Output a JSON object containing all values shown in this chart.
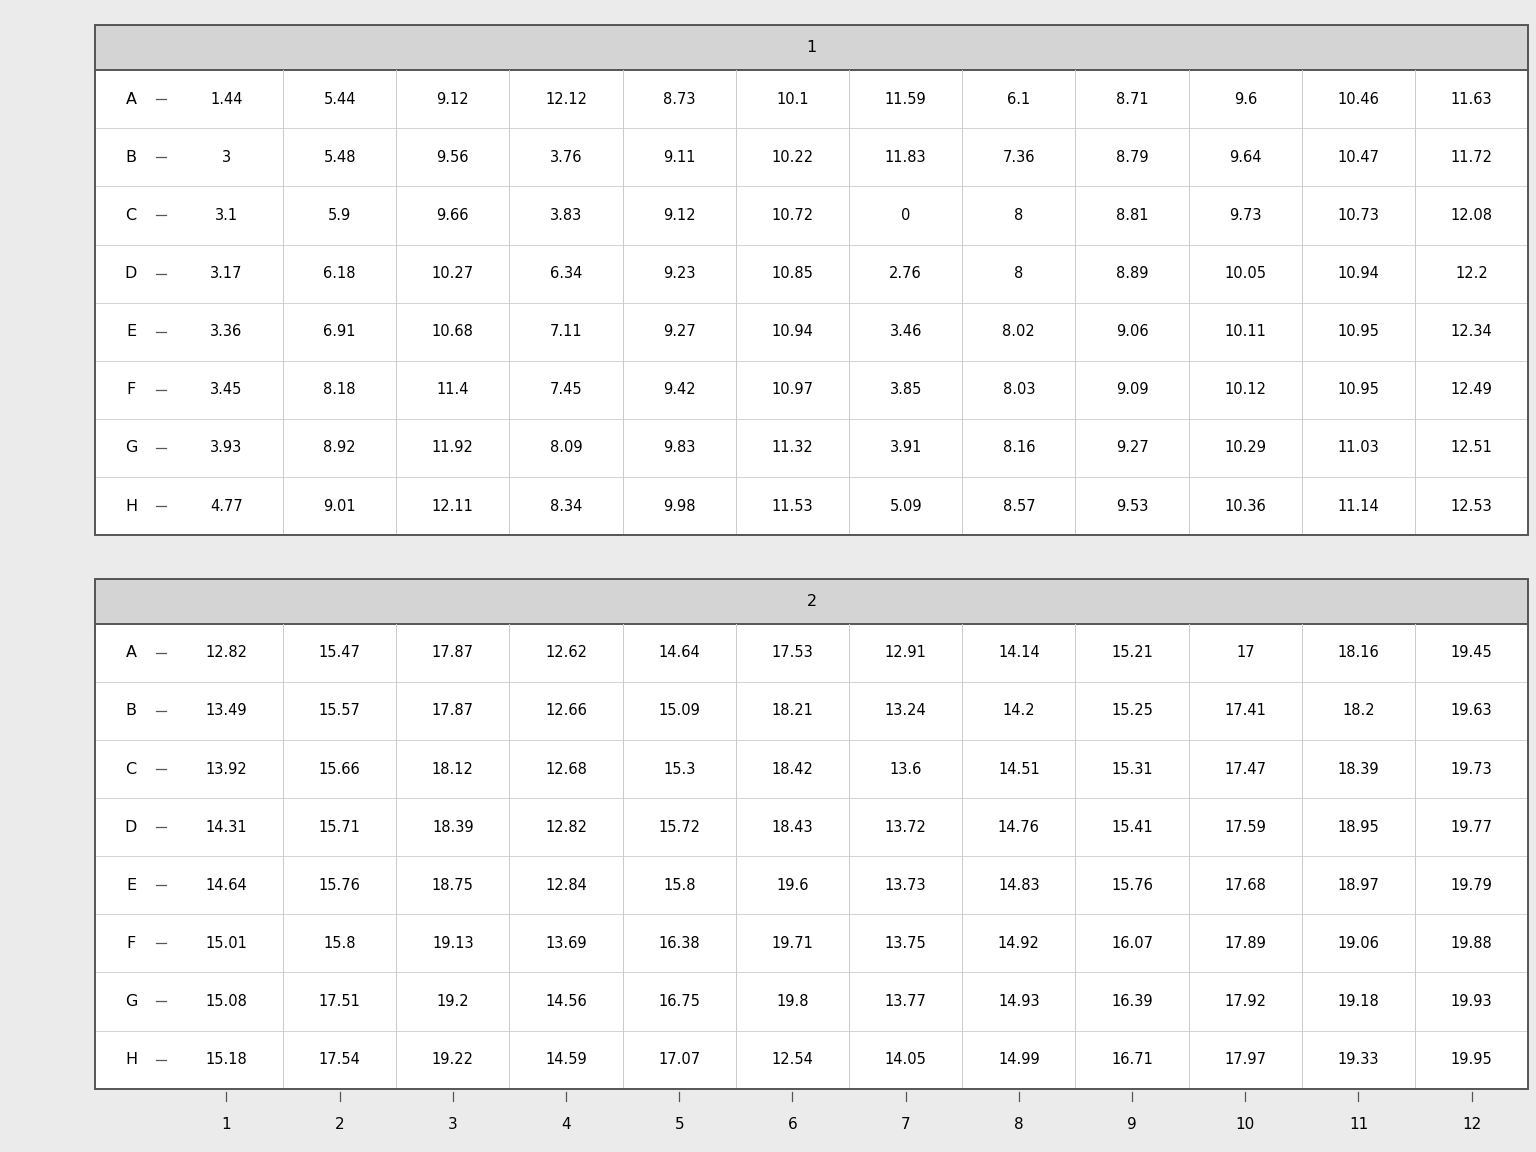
{
  "plate1_header": "1",
  "plate2_header": "2",
  "rows": [
    "A",
    "B",
    "C",
    "D",
    "E",
    "F",
    "G",
    "H"
  ],
  "cols": [
    "1",
    "2",
    "3",
    "4",
    "5",
    "6",
    "7",
    "8",
    "9",
    "10",
    "11",
    "12"
  ],
  "plate1": [
    [
      1.44,
      5.44,
      9.12,
      12.12,
      8.73,
      10.1,
      11.59,
      6.1,
      8.71,
      9.6,
      10.46,
      11.63
    ],
    [
      3.0,
      5.48,
      9.56,
      3.76,
      9.11,
      10.22,
      11.83,
      7.36,
      8.79,
      9.64,
      10.47,
      11.72
    ],
    [
      3.1,
      5.9,
      9.66,
      3.83,
      9.12,
      10.72,
      0.0,
      8.0,
      8.81,
      9.73,
      10.73,
      12.08
    ],
    [
      3.17,
      6.18,
      10.27,
      6.34,
      9.23,
      10.85,
      2.76,
      8.0,
      8.89,
      10.05,
      10.94,
      12.2
    ],
    [
      3.36,
      6.91,
      10.68,
      7.11,
      9.27,
      10.94,
      3.46,
      8.02,
      9.06,
      10.11,
      10.95,
      12.34
    ],
    [
      3.45,
      8.18,
      11.4,
      7.45,
      9.42,
      10.97,
      3.85,
      8.03,
      9.09,
      10.12,
      10.95,
      12.49
    ],
    [
      3.93,
      8.92,
      11.92,
      8.09,
      9.83,
      11.32,
      3.91,
      8.16,
      9.27,
      10.29,
      11.03,
      12.51
    ],
    [
      4.77,
      9.01,
      12.11,
      8.34,
      9.98,
      11.53,
      5.09,
      8.57,
      9.53,
      10.36,
      11.14,
      12.53
    ]
  ],
  "plate1_str": [
    [
      "1.44",
      "5.44",
      "9.12",
      "12.12",
      "8.73",
      "10.1",
      "11.59",
      "6.1",
      "8.71",
      "9.6",
      "10.46",
      "11.63"
    ],
    [
      "3",
      "5.48",
      "9.56",
      "3.76",
      "9.11",
      "10.22",
      "11.83",
      "7.36",
      "8.79",
      "9.64",
      "10.47",
      "11.72"
    ],
    [
      "3.1",
      "5.9",
      "9.66",
      "3.83",
      "9.12",
      "10.72",
      "0",
      "8",
      "8.81",
      "9.73",
      "10.73",
      "12.08"
    ],
    [
      "3.17",
      "6.18",
      "10.27",
      "6.34",
      "9.23",
      "10.85",
      "2.76",
      "8",
      "8.89",
      "10.05",
      "10.94",
      "12.2"
    ],
    [
      "3.36",
      "6.91",
      "10.68",
      "7.11",
      "9.27",
      "10.94",
      "3.46",
      "8.02",
      "9.06",
      "10.11",
      "10.95",
      "12.34"
    ],
    [
      "3.45",
      "8.18",
      "11.4",
      "7.45",
      "9.42",
      "10.97",
      "3.85",
      "8.03",
      "9.09",
      "10.12",
      "10.95",
      "12.49"
    ],
    [
      "3.93",
      "8.92",
      "11.92",
      "8.09",
      "9.83",
      "11.32",
      "3.91",
      "8.16",
      "9.27",
      "10.29",
      "11.03",
      "12.51"
    ],
    [
      "4.77",
      "9.01",
      "12.11",
      "8.34",
      "9.98",
      "11.53",
      "5.09",
      "8.57",
      "9.53",
      "10.36",
      "11.14",
      "12.53"
    ]
  ],
  "plate2_str": [
    [
      "12.82",
      "15.47",
      "17.87",
      "12.62",
      "14.64",
      "17.53",
      "12.91",
      "14.14",
      "15.21",
      "17",
      "18.16",
      "19.45"
    ],
    [
      "13.49",
      "15.57",
      "17.87",
      "12.66",
      "15.09",
      "18.21",
      "13.24",
      "14.2",
      "15.25",
      "17.41",
      "18.2",
      "19.63"
    ],
    [
      "13.92",
      "15.66",
      "18.12",
      "12.68",
      "15.3",
      "18.42",
      "13.6",
      "14.51",
      "15.31",
      "17.47",
      "18.39",
      "19.73"
    ],
    [
      "14.31",
      "15.71",
      "18.39",
      "12.82",
      "15.72",
      "18.43",
      "13.72",
      "14.76",
      "15.41",
      "17.59",
      "18.95",
      "19.77"
    ],
    [
      "14.64",
      "15.76",
      "18.75",
      "12.84",
      "15.8",
      "19.6",
      "13.73",
      "14.83",
      "15.76",
      "17.68",
      "18.97",
      "19.79"
    ],
    [
      "15.01",
      "15.8",
      "19.13",
      "13.69",
      "16.38",
      "19.71",
      "13.75",
      "14.92",
      "16.07",
      "17.89",
      "19.06",
      "19.88"
    ],
    [
      "15.08",
      "17.51",
      "19.2",
      "14.56",
      "16.75",
      "19.8",
      "13.77",
      "14.93",
      "16.39",
      "17.92",
      "19.18",
      "19.93"
    ],
    [
      "15.18",
      "17.54",
      "19.22",
      "14.59",
      "17.07",
      "12.54",
      "14.05",
      "14.99",
      "16.71",
      "17.97",
      "19.33",
      "19.95"
    ]
  ],
  "bg_color": "#ebebeb",
  "header_bg": "#d4d4d4",
  "cell_bg": "#ffffff",
  "border_color": "#555555",
  "grid_color": "#cccccc",
  "text_color": "#000000",
  "font_size": 10.5,
  "header_font_size": 11.5,
  "row_label_font_size": 11.5,
  "col_label_font_size": 11.0
}
